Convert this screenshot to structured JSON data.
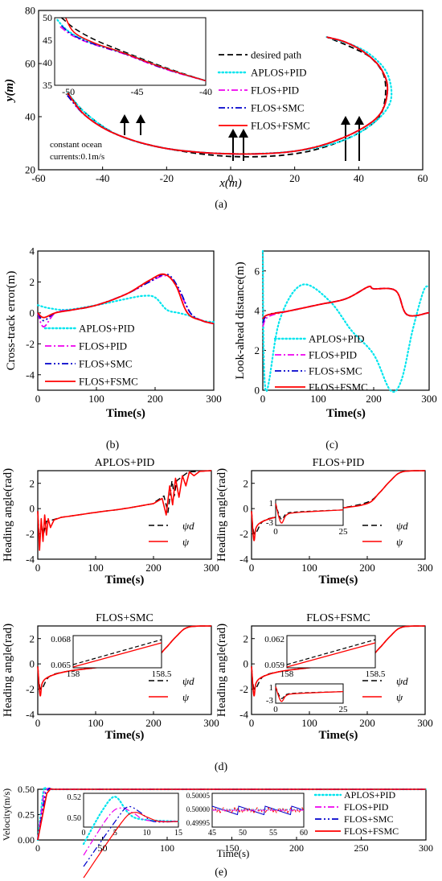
{
  "colors": {
    "desired": "#000000",
    "aplos": "#00e5ee",
    "flospid": "#ee00ee",
    "flossmc": "#0000cc",
    "flosfsmc": "#ff0000"
  },
  "panels": {
    "a": {
      "label": "(a)",
      "xlabel": "x(m)",
      "ylabel": "y(m)",
      "xlim": [
        -60,
        60
      ],
      "ylim": [
        20,
        80
      ],
      "xticks": [
        "-60",
        "-40",
        "-20",
        "0",
        "20",
        "40",
        "60"
      ],
      "yticks": [
        "20",
        "40",
        "60",
        "80"
      ],
      "legend": [
        "desired path",
        "APLOS+PID",
        "FLOS+PID",
        "FLOS+SMC",
        "FLOS+FSMC"
      ],
      "annotation": [
        "constant ocean",
        "currents:0.1m/s"
      ],
      "inset": {
        "xlim": [
          -51,
          -40
        ],
        "ylim": [
          35,
          50
        ],
        "xticks": [
          "-50",
          "-45",
          "-40"
        ],
        "yticks": [
          "35",
          "40",
          "45",
          "50"
        ]
      }
    },
    "b": {
      "label": "(b)",
      "xlabel": "Time(s)",
      "ylabel": "Cross-track error(m)",
      "xlim": [
        0,
        300
      ],
      "ylim": [
        -5,
        4
      ],
      "xticks": [
        "0",
        "100",
        "200",
        "300"
      ],
      "yticks": [
        "-4",
        "-2",
        "0",
        "2",
        "4"
      ],
      "legend": [
        "APLOS+PID",
        "FLOS+PID",
        "FLOS+SMC",
        "FLOS+FSMC"
      ]
    },
    "c": {
      "label": "(c)",
      "xlabel": "Time(s)",
      "ylabel": "Look-ahead distance(m)",
      "xlim": [
        0,
        300
      ],
      "ylim": [
        0,
        7
      ],
      "xticks": [
        "0",
        "100",
        "200",
        "300"
      ],
      "yticks": [
        "0",
        "2",
        "4",
        "6"
      ],
      "legend": [
        "APLOS+PID",
        "FLOS+PID",
        "FLOS+SMC",
        "FLOS+FSMC"
      ]
    },
    "d": {
      "label": "(d)",
      "ylabel": "Heading angle(rad)",
      "xlabel": "Time(s)",
      "xlim": [
        0,
        300
      ],
      "ylim": [
        -4,
        3
      ],
      "xticks": [
        "0",
        "100",
        "200",
        "300"
      ],
      "yticks": [
        "-4",
        "-2",
        "0",
        "2"
      ],
      "subplots": [
        {
          "title": "APLOS+PID",
          "legend": [
            "ψd",
            "ψ"
          ]
        },
        {
          "title": "FLOS+PID",
          "legend": [
            "ψd",
            "ψ"
          ],
          "inset": {
            "yticks": [
              "1",
              "-3"
            ],
            "xticks": [
              "0",
              "25"
            ]
          }
        },
        {
          "title": "FLOS+SMC",
          "legend": [
            "ψd",
            "ψ"
          ],
          "inset": {
            "yticks": [
              "0.068",
              "0.065"
            ],
            "xticks": [
              "158",
              "158.5"
            ]
          }
        },
        {
          "title": "FLOS+FSMC",
          "legend": [
            "ψd",
            "ψ"
          ],
          "inset": {
            "yticks": [
              "0.062",
              "0.059"
            ],
            "xticks": [
              "158",
              "158.5"
            ]
          },
          "inset2": {
            "yticks": [
              "1",
              "-3"
            ],
            "xticks": [
              "0",
              "25"
            ]
          }
        }
      ]
    },
    "e": {
      "label": "(e)",
      "xlabel": "Time(s)",
      "ylabel": "Velocity(m/s)",
      "xlim": [
        0,
        300
      ],
      "ylim": [
        0,
        0.5
      ],
      "xticks": [
        "0",
        "50",
        "100",
        "150",
        "200",
        "250",
        "300"
      ],
      "yticks": [
        "0.00",
        "0.25",
        "0.50"
      ],
      "legend": [
        "APLOS+PID",
        "FLOS+PID",
        "FLOS+SMC",
        "FLOS+FSMC"
      ],
      "inset1": {
        "xticks": [
          "0",
          "5",
          "10",
          "15"
        ],
        "yticks": [
          "0.52",
          "0.50"
        ]
      },
      "inset2": {
        "xticks": [
          "45",
          "50",
          "55",
          "60"
        ],
        "yticks": [
          "0.50005",
          "0.50000",
          "0.49995"
        ]
      }
    }
  },
  "chart_data": [
    {
      "type": "line",
      "panel": "a",
      "x_name": "x(m)",
      "y_name": "y(m)",
      "series": [
        {
          "name": "desired path",
          "points": [
            [
              -51,
              49
            ],
            [
              -45,
              41
            ],
            [
              -35,
              33
            ],
            [
              -20,
              28
            ],
            [
              0,
              25
            ],
            [
              20,
              26
            ],
            [
              35,
              31
            ],
            [
              45,
              38
            ],
            [
              48,
              45
            ],
            [
              48,
              55
            ],
            [
              44,
              62
            ],
            [
              38,
              66
            ],
            [
              30,
              70
            ]
          ]
        },
        {
          "name": "APLOS+PID",
          "points": [
            [
              -51,
              49
            ],
            [
              -45,
              41
            ],
            [
              -35,
              33
            ],
            [
              -20,
              28
            ],
            [
              0,
              26
            ],
            [
              20,
              27
            ],
            [
              35,
              31
            ],
            [
              45,
              38
            ],
            [
              50,
              46
            ],
            [
              49,
              56
            ],
            [
              44,
              63
            ],
            [
              38,
              67
            ],
            [
              30,
              70
            ]
          ]
        },
        {
          "name": "FLOS+PID",
          "points": [
            [
              -51,
              48
            ],
            [
              -45,
              40
            ],
            [
              -35,
              33
            ],
            [
              -20,
              28
            ],
            [
              0,
              26
            ],
            [
              20,
              27
            ],
            [
              35,
              32
            ],
            [
              46,
              40
            ],
            [
              49,
              50
            ],
            [
              47,
              58
            ],
            [
              42,
              64
            ],
            [
              36,
              68
            ],
            [
              30,
              70
            ]
          ]
        },
        {
          "name": "FLOS+SMC",
          "points": [
            [
              -51,
              48
            ],
            [
              -45,
              40
            ],
            [
              -35,
              33
            ],
            [
              -20,
              28
            ],
            [
              0,
              26
            ],
            [
              20,
              27
            ],
            [
              35,
              32
            ],
            [
              46,
              40
            ],
            [
              49,
              50
            ],
            [
              47,
              58
            ],
            [
              42,
              64
            ],
            [
              36,
              68
            ],
            [
              30,
              70
            ]
          ]
        },
        {
          "name": "FLOS+FSMC",
          "points": [
            [
              -51,
              49
            ],
            [
              -45,
              40
            ],
            [
              -35,
              33
            ],
            [
              -20,
              28
            ],
            [
              0,
              26
            ],
            [
              20,
              27
            ],
            [
              35,
              32
            ],
            [
              46,
              40
            ],
            [
              49,
              50
            ],
            [
              47,
              58
            ],
            [
              42,
              64
            ],
            [
              36,
              68
            ],
            [
              30,
              70
            ]
          ]
        }
      ]
    },
    {
      "type": "line",
      "panel": "b",
      "x_name": "Time(s)",
      "y_name": "Cross-track error(m)",
      "series": [
        {
          "name": "APLOS+PID",
          "points": [
            [
              0,
              0.5
            ],
            [
              20,
              0.3
            ],
            [
              50,
              0.2
            ],
            [
              100,
              0.5
            ],
            [
              150,
              0.9
            ],
            [
              180,
              1.1
            ],
            [
              200,
              1
            ],
            [
              220,
              0.2
            ],
            [
              240,
              0
            ],
            [
              260,
              -0.2
            ],
            [
              280,
              -0.5
            ],
            [
              300,
              -0.6
            ]
          ]
        },
        {
          "name": "FLOS+PID",
          "points": [
            [
              0,
              0
            ],
            [
              10,
              -0.9
            ],
            [
              30,
              0
            ],
            [
              60,
              0.2
            ],
            [
              100,
              0.5
            ],
            [
              150,
              1.2
            ],
            [
              190,
              2
            ],
            [
              220,
              2.4
            ],
            [
              240,
              1.5
            ],
            [
              260,
              0
            ],
            [
              280,
              -0.5
            ],
            [
              300,
              -0.7
            ]
          ]
        },
        {
          "name": "FLOS+SMC",
          "points": [
            [
              0,
              0
            ],
            [
              10,
              -0.5
            ],
            [
              30,
              0
            ],
            [
              60,
              0.2
            ],
            [
              100,
              0.5
            ],
            [
              150,
              1.2
            ],
            [
              190,
              2
            ],
            [
              220,
              2.5
            ],
            [
              240,
              1.6
            ],
            [
              260,
              0
            ],
            [
              280,
              -0.5
            ],
            [
              300,
              -0.7
            ]
          ]
        },
        {
          "name": "FLOS+FSMC",
          "points": [
            [
              0,
              0
            ],
            [
              10,
              -0.3
            ],
            [
              30,
              0
            ],
            [
              60,
              0.2
            ],
            [
              100,
              0.5
            ],
            [
              150,
              1.2
            ],
            [
              190,
              2.1
            ],
            [
              215,
              2.5
            ],
            [
              235,
              1.8
            ],
            [
              255,
              0
            ],
            [
              280,
              -0.5
            ],
            [
              300,
              -0.7
            ]
          ]
        }
      ]
    },
    {
      "type": "line",
      "panel": "c",
      "x_name": "Time(s)",
      "y_name": "Look-ahead distance(m)",
      "series": [
        {
          "name": "APLOS+PID",
          "points": [
            [
              0,
              7
            ],
            [
              5,
              0
            ],
            [
              30,
              3.5
            ],
            [
              70,
              5.3
            ],
            [
              120,
              4.5
            ],
            [
              160,
              3
            ],
            [
              200,
              1.8
            ],
            [
              230,
              0
            ],
            [
              250,
              0.5
            ],
            [
              270,
              3
            ],
            [
              290,
              5
            ],
            [
              300,
              5.2
            ]
          ]
        },
        {
          "name": "FLOS+PID",
          "points": [
            [
              0,
              3.2
            ],
            [
              10,
              3.7
            ],
            [
              50,
              4
            ],
            [
              100,
              4.3
            ],
            [
              150,
              4.6
            ],
            [
              190,
              5.2
            ],
            [
              200,
              5.1
            ],
            [
              240,
              5
            ],
            [
              260,
              3.8
            ],
            [
              300,
              3.9
            ]
          ]
        },
        {
          "name": "FLOS+SMC",
          "points": [
            [
              0,
              3.4
            ],
            [
              10,
              3.8
            ],
            [
              50,
              4
            ],
            [
              100,
              4.3
            ],
            [
              150,
              4.6
            ],
            [
              190,
              5.2
            ],
            [
              200,
              5.1
            ],
            [
              240,
              5
            ],
            [
              260,
              3.8
            ],
            [
              300,
              3.9
            ]
          ]
        },
        {
          "name": "FLOS+FSMC",
          "points": [
            [
              0,
              3.6
            ],
            [
              10,
              3.8
            ],
            [
              50,
              4
            ],
            [
              100,
              4.3
            ],
            [
              150,
              4.6
            ],
            [
              190,
              5.2
            ],
            [
              200,
              5.1
            ],
            [
              240,
              5
            ],
            [
              260,
              3.8
            ],
            [
              300,
              3.9
            ]
          ]
        }
      ]
    },
    {
      "type": "line",
      "panel": "d",
      "x_name": "Time(s)",
      "y_name": "Heading angle(rad)",
      "series": [
        {
          "name": "ψd",
          "points": [
            [
              0,
              -0.2
            ],
            [
              5,
              -2
            ],
            [
              20,
              -1
            ],
            [
              50,
              -0.6
            ],
            [
              100,
              -0.3
            ],
            [
              150,
              0
            ],
            [
              200,
              0.5
            ],
            [
              220,
              1.2
            ],
            [
              240,
              2.2
            ],
            [
              260,
              2.9
            ],
            [
              300,
              3
            ]
          ]
        },
        {
          "name": "ψ",
          "points": [
            [
              0,
              -0.2
            ],
            [
              4,
              -2.5
            ],
            [
              8,
              -1.5
            ],
            [
              20,
              -1
            ],
            [
              50,
              -0.6
            ],
            [
              100,
              -0.3
            ],
            [
              150,
              0
            ],
            [
              200,
              0.4
            ],
            [
              220,
              1.2
            ],
            [
              240,
              2.2
            ],
            [
              260,
              2.9
            ],
            [
              300,
              3
            ]
          ]
        }
      ]
    },
    {
      "type": "line",
      "panel": "e",
      "x_name": "Time(s)",
      "y_name": "Velocity(m/s)",
      "series": [
        {
          "name": "APLOS+PID",
          "points": [
            [
              0,
              0
            ],
            [
              4,
              0.45
            ],
            [
              5,
              0.52
            ],
            [
              7,
              0.5
            ],
            [
              300,
              0.5
            ]
          ]
        },
        {
          "name": "FLOS+PID",
          "points": [
            [
              0,
              0
            ],
            [
              5,
              0.48
            ],
            [
              8,
              0.51
            ],
            [
              10,
              0.5
            ],
            [
              300,
              0.5
            ]
          ]
        },
        {
          "name": "FLOS+SMC",
          "points": [
            [
              0,
              0
            ],
            [
              6,
              0.47
            ],
            [
              9,
              0.51
            ],
            [
              11,
              0.5
            ],
            [
              300,
              0.5
            ]
          ]
        },
        {
          "name": "FLOS+FSMC",
          "points": [
            [
              0,
              0
            ],
            [
              7,
              0.46
            ],
            [
              10,
              0.505
            ],
            [
              12,
              0.5
            ],
            [
              300,
              0.5
            ]
          ]
        }
      ]
    }
  ]
}
